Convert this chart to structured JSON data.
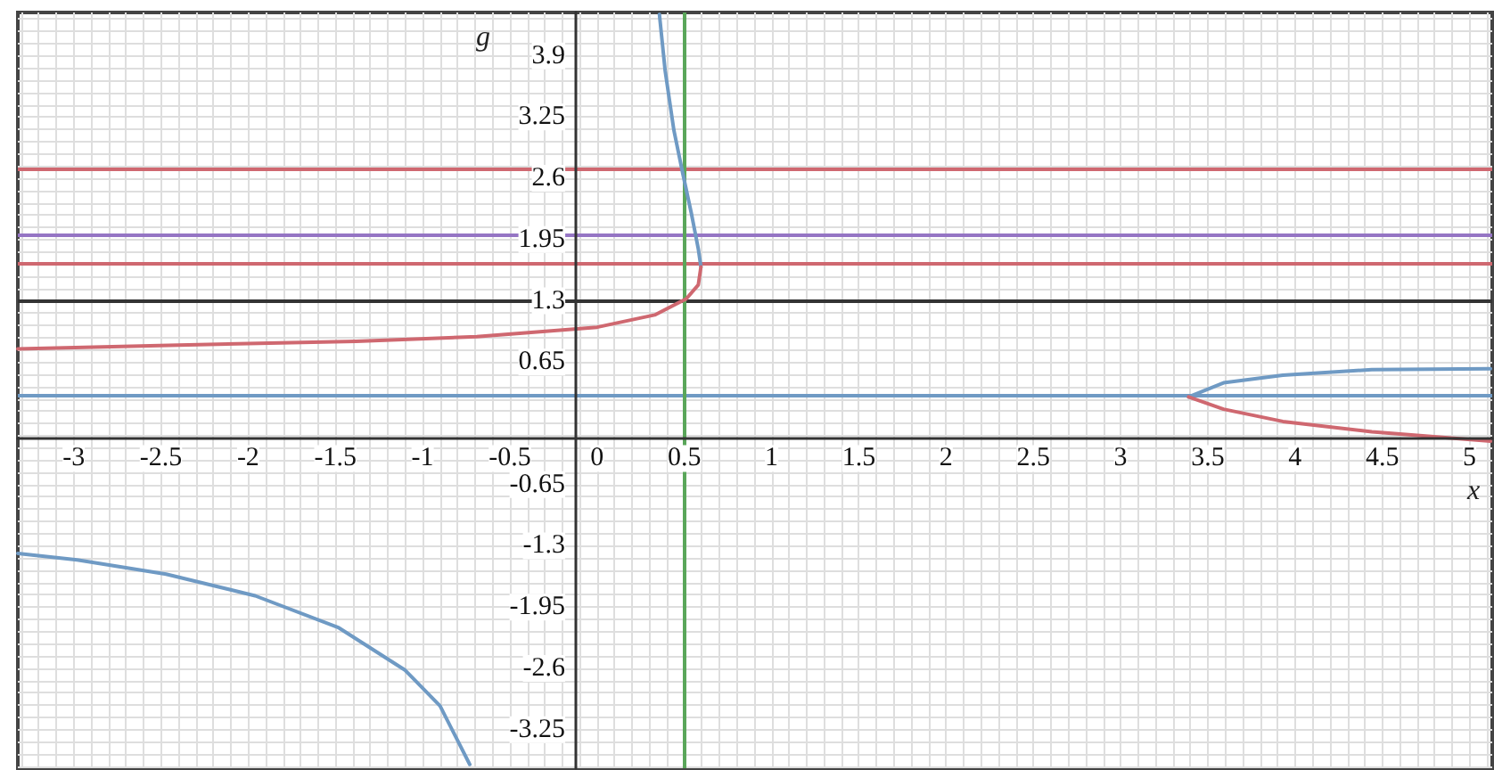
{
  "chart_data": {
    "type": "line",
    "xlabel": "x",
    "ylabel": "g",
    "xlim": [
      -3.32,
      5.13
    ],
    "ylim": [
      -3.66,
      4.36
    ],
    "xticks": [
      -3,
      -2.5,
      -2,
      -1.5,
      -1,
      -0.5,
      0,
      0.5,
      1,
      1.5,
      2,
      2.5,
      3,
      3.5,
      4,
      4.5,
      5
    ],
    "yticks": [
      -3.25,
      -2.6,
      -1.95,
      -1.3,
      -0.65,
      0.65,
      1.3,
      1.95,
      2.6,
      3.25,
      3.9
    ],
    "grid": true,
    "marker": "none",
    "line_style": "solid",
    "series": [
      {
        "color": "#6f9ac4",
        "x": [
          0.357,
          0.39,
          0.44,
          0.49,
          0.54,
          0.58,
          0.595
        ],
        "values": [
          4.34,
          3.74,
          3.11,
          2.66,
          2.23,
          1.85,
          1.66
        ]
      },
      {
        "color": "#cf6870",
        "x": [
          0.595,
          0.58,
          0.51,
          0.33,
          0,
          -0.69,
          -1.38,
          -2.4,
          -3.32
        ],
        "values": [
          1.66,
          1.47,
          1.32,
          1.15,
          1.02,
          0.92,
          0.87,
          0.83,
          0.79
        ]
      },
      {
        "color": "#6f9ac4",
        "x": [
          -3.32,
          -2.98,
          -2.47,
          -1.96,
          -1.48,
          -1.1,
          -0.9,
          -0.73
        ],
        "values": [
          -1.38,
          -1.45,
          -1.6,
          -1.83,
          -2.17,
          -2.62,
          -3.0,
          -3.62
        ]
      },
      {
        "color": "#6f9ac4",
        "x": [
          3.39,
          3.59,
          3.93,
          4.44,
          5.12
        ],
        "values": [
          0.28,
          0.43,
          0.51,
          0.57,
          0.58
        ]
      },
      {
        "color": "#cf6870",
        "x": [
          3.39,
          3.59,
          3.93,
          4.44,
          5.12
        ],
        "values": [
          0.28,
          0.15,
          0.02,
          -0.09,
          -0.19
        ]
      }
    ],
    "ref_lines": [
      {
        "axis": "y",
        "value": 2.7,
        "color": "#cf6870"
      },
      {
        "axis": "y",
        "value": 2.0,
        "color": "#9575c4"
      },
      {
        "axis": "y",
        "value": 1.7,
        "color": "#cf6870"
      },
      {
        "axis": "y",
        "value": 1.3,
        "color": "#333333"
      },
      {
        "axis": "y",
        "value": 0.3,
        "color": "#6f9ac4"
      },
      {
        "axis": "x",
        "value": 0.5,
        "color": "#5aa65a"
      }
    ]
  }
}
